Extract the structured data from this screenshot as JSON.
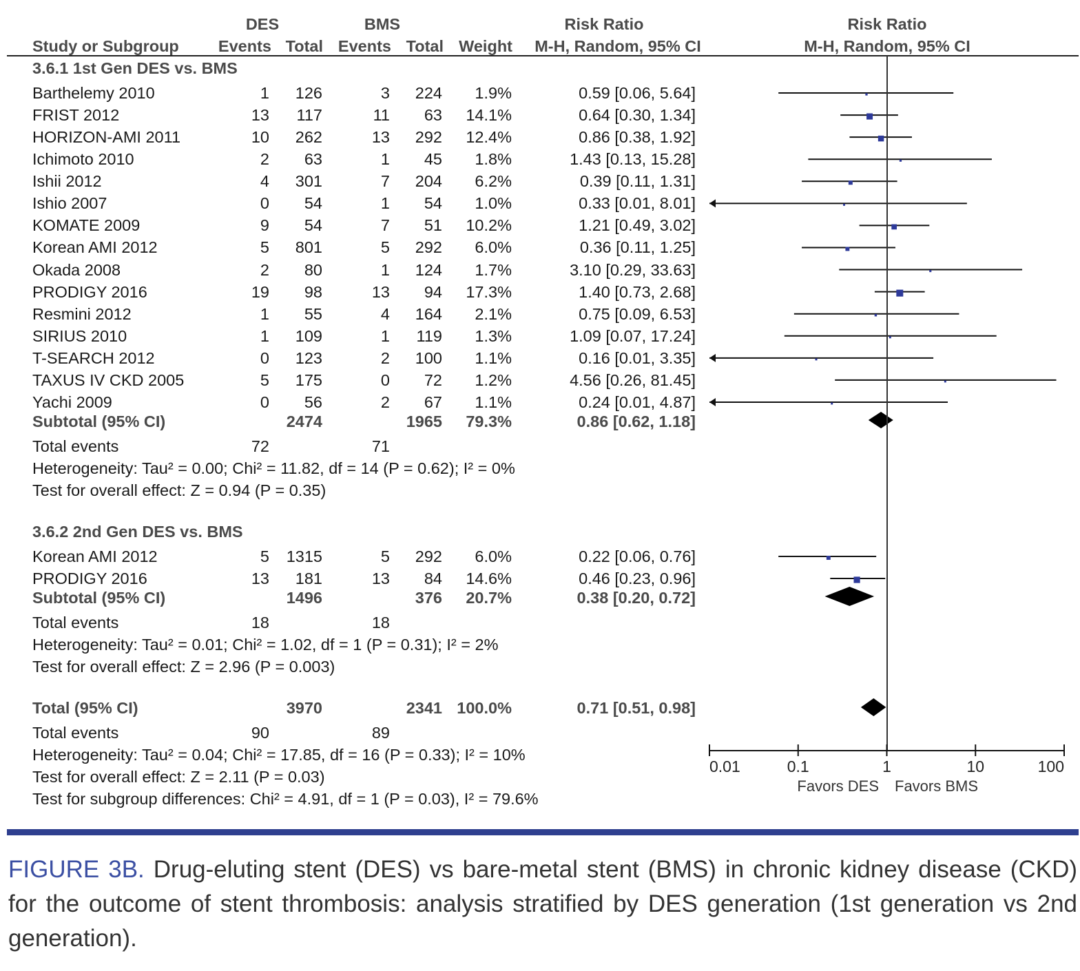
{
  "header": {
    "study_col": "Study or Subgroup",
    "des": "DES",
    "bms": "BMS",
    "events": "Events",
    "total": "Total",
    "weight": "Weight",
    "rr_title": "Risk Ratio",
    "rr_method": "M-H, Random, 95% CI",
    "plot_title": "Risk Ratio",
    "plot_method": "M-H, Random, 95% CI"
  },
  "chart_data": {
    "type": "forest",
    "x_scale": "log",
    "xlim": [
      0.01,
      100
    ],
    "x_ticks": [
      "0.01",
      "0.1",
      "1",
      "10",
      "100"
    ],
    "x_tick_values": [
      0.01,
      0.1,
      1,
      10,
      100
    ],
    "label_left": "Favors DES",
    "label_right": "Favors BMS",
    "marker_color": "#2e3a9a",
    "groups": [
      {
        "heading": "3.6.1 1st Gen DES vs. BMS",
        "studies": [
          {
            "name": "Barthelemy 2010",
            "des_events": "1",
            "des_total": "126",
            "bms_events": "3",
            "bms_total": "224",
            "weight": "1.9%",
            "rr_text": "0.59 [0.06, 5.64]",
            "rr": 0.59,
            "lo": 0.06,
            "hi": 5.64
          },
          {
            "name": "FRIST 2012",
            "des_events": "13",
            "des_total": "117",
            "bms_events": "11",
            "bms_total": "63",
            "weight": "14.1%",
            "rr_text": "0.64 [0.30, 1.34]",
            "rr": 0.64,
            "lo": 0.3,
            "hi": 1.34
          },
          {
            "name": "HORIZON-AMI 2011",
            "des_events": "10",
            "des_total": "262",
            "bms_events": "13",
            "bms_total": "292",
            "weight": "12.4%",
            "rr_text": "0.86 [0.38, 1.92]",
            "rr": 0.86,
            "lo": 0.38,
            "hi": 1.92
          },
          {
            "name": "Ichimoto 2010",
            "des_events": "2",
            "des_total": "63",
            "bms_events": "1",
            "bms_total": "45",
            "weight": "1.8%",
            "rr_text": "1.43 [0.13, 15.28]",
            "rr": 1.43,
            "lo": 0.13,
            "hi": 15.28
          },
          {
            "name": "Ishii 2012",
            "des_events": "4",
            "des_total": "301",
            "bms_events": "7",
            "bms_total": "204",
            "weight": "6.2%",
            "rr_text": "0.39 [0.11, 1.31]",
            "rr": 0.39,
            "lo": 0.11,
            "hi": 1.31
          },
          {
            "name": "Ishio 2007",
            "des_events": "0",
            "des_total": "54",
            "bms_events": "1",
            "bms_total": "54",
            "weight": "1.0%",
            "rr_text": "0.33 [0.01, 8.01]",
            "rr": 0.33,
            "lo": 0.01,
            "hi": 8.01
          },
          {
            "name": "KOMATE 2009",
            "des_events": "9",
            "des_total": "54",
            "bms_events": "7",
            "bms_total": "51",
            "weight": "10.2%",
            "rr_text": "1.21 [0.49, 3.02]",
            "rr": 1.21,
            "lo": 0.49,
            "hi": 3.02
          },
          {
            "name": "Korean AMI 2012",
            "des_events": "5",
            "des_total": "801",
            "bms_events": "5",
            "bms_total": "292",
            "weight": "6.0%",
            "rr_text": "0.36 [0.11, 1.25]",
            "rr": 0.36,
            "lo": 0.11,
            "hi": 1.25
          },
          {
            "name": "Okada 2008",
            "des_events": "2",
            "des_total": "80",
            "bms_events": "1",
            "bms_total": "124",
            "weight": "1.7%",
            "rr_text": "3.10 [0.29, 33.63]",
            "rr": 3.1,
            "lo": 0.29,
            "hi": 33.63
          },
          {
            "name": "PRODIGY 2016",
            "des_events": "19",
            "des_total": "98",
            "bms_events": "13",
            "bms_total": "94",
            "weight": "17.3%",
            "rr_text": "1.40 [0.73, 2.68]",
            "rr": 1.4,
            "lo": 0.73,
            "hi": 2.68
          },
          {
            "name": "Resmini 2012",
            "des_events": "1",
            "des_total": "55",
            "bms_events": "4",
            "bms_total": "164",
            "weight": "2.1%",
            "rr_text": "0.75 [0.09, 6.53]",
            "rr": 0.75,
            "lo": 0.09,
            "hi": 6.53
          },
          {
            "name": "SIRIUS 2010",
            "des_events": "1",
            "des_total": "109",
            "bms_events": "1",
            "bms_total": "119",
            "weight": "1.3%",
            "rr_text": "1.09 [0.07, 17.24]",
            "rr": 1.09,
            "lo": 0.07,
            "hi": 17.24
          },
          {
            "name": "T-SEARCH 2012",
            "des_events": "0",
            "des_total": "123",
            "bms_events": "2",
            "bms_total": "100",
            "weight": "1.1%",
            "rr_text": "0.16 [0.01, 3.35]",
            "rr": 0.16,
            "lo": 0.01,
            "hi": 3.35
          },
          {
            "name": "TAXUS IV CKD 2005",
            "des_events": "5",
            "des_total": "175",
            "bms_events": "0",
            "bms_total": "72",
            "weight": "1.2%",
            "rr_text": "4.56 [0.26, 81.45]",
            "rr": 4.56,
            "lo": 0.26,
            "hi": 81.45
          },
          {
            "name": "Yachi 2009",
            "des_events": "0",
            "des_total": "56",
            "bms_events": "2",
            "bms_total": "67",
            "weight": "1.1%",
            "rr_text": "0.24 [0.01, 4.87]",
            "rr": 0.24,
            "lo": 0.01,
            "hi": 4.87
          }
        ],
        "subtotal": {
          "label": "Subtotal (95% CI)",
          "des_total": "2474",
          "bms_total": "1965",
          "weight": "79.3%",
          "rr_text": "0.86 [0.62, 1.18]",
          "rr": 0.86,
          "lo": 0.62,
          "hi": 1.18
        },
        "total_events": {
          "label": "Total events",
          "des": "72",
          "bms": "71"
        },
        "heterogeneity": "Heterogeneity: Tau² = 0.00; Chi² = 11.82, df = 14 (P = 0.62); I² = 0%",
        "overall_effect": "Test for overall effect: Z = 0.94 (P = 0.35)"
      },
      {
        "heading": "3.6.2 2nd Gen DES vs. BMS",
        "studies": [
          {
            "name": "Korean AMI 2012",
            "des_events": "5",
            "des_total": "1315",
            "bms_events": "5",
            "bms_total": "292",
            "weight": "6.0%",
            "rr_text": "0.22 [0.06, 0.76]",
            "rr": 0.22,
            "lo": 0.06,
            "hi": 0.76
          },
          {
            "name": "PRODIGY 2016",
            "des_events": "13",
            "des_total": "181",
            "bms_events": "13",
            "bms_total": "84",
            "weight": "14.6%",
            "rr_text": "0.46 [0.23, 0.96]",
            "rr": 0.46,
            "lo": 0.23,
            "hi": 0.96
          }
        ],
        "subtotal": {
          "label": "Subtotal (95% CI)",
          "des_total": "1496",
          "bms_total": "376",
          "weight": "20.7%",
          "rr_text": "0.38 [0.20, 0.72]",
          "rr": 0.38,
          "lo": 0.2,
          "hi": 0.72
        },
        "total_events": {
          "label": "Total events",
          "des": "18",
          "bms": "18"
        },
        "heterogeneity": "Heterogeneity: Tau² = 0.01; Chi² = 1.02, df = 1 (P = 0.31); I² = 2%",
        "overall_effect": "Test for overall effect: Z = 2.96 (P = 0.003)"
      }
    ],
    "overall": {
      "label": "Total (95% CI)",
      "des_total": "3970",
      "bms_total": "2341",
      "weight": "100.0%",
      "rr_text": "0.71 [0.51, 0.98]",
      "rr": 0.71,
      "lo": 0.51,
      "hi": 0.98,
      "total_events": {
        "label": "Total events",
        "des": "90",
        "bms": "89"
      },
      "heterogeneity": "Heterogeneity: Tau² = 0.04; Chi² = 17.85, df = 16 (P = 0.33); I² = 10%",
      "overall_effect": "Test for overall effect: Z = 2.11 (P = 0.03)",
      "subgroup_differences": "Test for subgroup differences: Chi² = 4.91, df = 1 (P = 0.03), I² = 79.6%"
    }
  },
  "caption": {
    "figure_label": "FIGURE 3B.",
    "text": "Drug-eluting stent (DES) vs bare-metal stent (BMS) in chronic kidney disease (CKD) for the outcome of stent thrombosis: analysis stratified by DES generation (1st generation vs 2nd generation)."
  },
  "colors": {
    "accent_bar": "#2e3f8f",
    "figure_label": "#3b4fa3"
  }
}
